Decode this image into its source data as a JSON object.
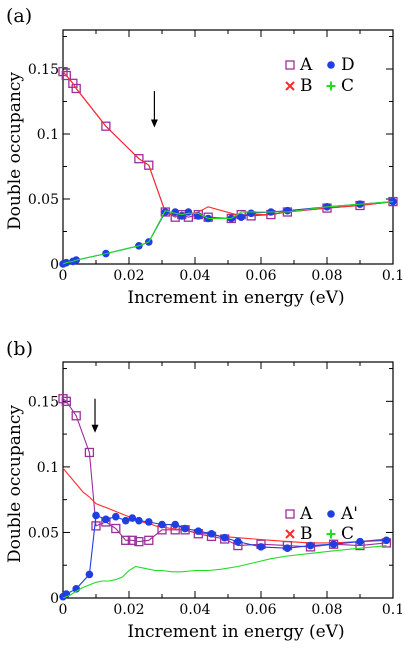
{
  "chart_data": [
    {
      "type": "line",
      "panel_label": "(a)",
      "xlabel": "Increment in energy (eV)",
      "ylabel": "Double occupancy",
      "xlim": [
        0,
        0.1
      ],
      "ylim": [
        0,
        0.18
      ],
      "xticks": [
        "0",
        "0.02",
        "0.04",
        "0.06",
        "0.08",
        "0.1"
      ],
      "yticks": [
        "0",
        "0.05",
        "0.1",
        "0.15"
      ],
      "arrow_at": {
        "x": 0.0277,
        "y_top": 0.133,
        "y_bottom": 0.105
      },
      "legend": {
        "placement": "top-right",
        "columns": 2
      },
      "series": [
        {
          "name": "A",
          "marker": "open-square",
          "color": "#9b2f9b",
          "x": [
            0,
            0.001,
            0.003,
            0.004,
            0.013,
            0.023,
            0.026,
            0.031,
            0.034,
            0.036,
            0.038,
            0.041,
            0.044,
            0.051,
            0.054,
            0.057,
            0.063,
            0.068,
            0.08,
            0.09,
            0.1
          ],
          "y": [
            0.148,
            0.145,
            0.139,
            0.135,
            0.106,
            0.081,
            0.076,
            0.04,
            0.036,
            0.038,
            0.036,
            0.038,
            0.036,
            0.035,
            0.038,
            0.037,
            0.038,
            0.04,
            0.043,
            0.045,
            0.048
          ]
        },
        {
          "name": "B",
          "marker": "x",
          "color": "#ff2a2a",
          "x": [
            0,
            0.001,
            0.003,
            0.004,
            0.013,
            0.023,
            0.026,
            0.031,
            0.034,
            0.036,
            0.038,
            0.041,
            0.044,
            0.051,
            0.054,
            0.057,
            0.063,
            0.068,
            0.08,
            0.09,
            0.1
          ],
          "y": [
            0.148,
            0.145,
            0.139,
            0.135,
            0.106,
            0.081,
            0.076,
            0.04,
            0.037,
            0.04,
            0.038,
            0.04,
            0.044,
            0.039,
            0.037,
            0.038,
            0.038,
            0.04,
            0.043,
            0.045,
            0.048
          ]
        },
        {
          "name": "D",
          "marker": "filled-circle",
          "color": "#1f3fe0",
          "x": [
            0,
            0.001,
            0.003,
            0.004,
            0.013,
            0.023,
            0.026,
            0.031,
            0.034,
            0.036,
            0.038,
            0.041,
            0.044,
            0.051,
            0.054,
            0.057,
            0.063,
            0.068,
            0.08,
            0.09,
            0.1
          ],
          "y": [
            0.0,
            0.001,
            0.002,
            0.003,
            0.008,
            0.014,
            0.017,
            0.04,
            0.04,
            0.037,
            0.04,
            0.037,
            0.035,
            0.035,
            0.036,
            0.039,
            0.04,
            0.041,
            0.044,
            0.046,
            0.048
          ]
        },
        {
          "name": "C",
          "marker": "plus",
          "color": "#22dd22",
          "x": [
            0,
            0.001,
            0.003,
            0.004,
            0.013,
            0.023,
            0.026,
            0.031,
            0.034,
            0.036,
            0.038,
            0.041,
            0.044,
            0.051,
            0.054,
            0.057,
            0.063,
            0.068,
            0.08,
            0.09,
            0.1
          ],
          "y": [
            0.0,
            0.001,
            0.002,
            0.003,
            0.008,
            0.014,
            0.017,
            0.041,
            0.039,
            0.038,
            0.039,
            0.039,
            0.035,
            0.035,
            0.04,
            0.04,
            0.04,
            0.04,
            0.044,
            0.046,
            0.048
          ]
        }
      ]
    },
    {
      "type": "line",
      "panel_label": "(b)",
      "xlabel": "Increment in energy (eV)",
      "ylabel": "Double occupancy",
      "xlim": [
        0,
        0.1
      ],
      "ylim": [
        0,
        0.18
      ],
      "xticks": [
        "0",
        "0.02",
        "0.04",
        "0.06",
        "0.08",
        "0.1"
      ],
      "yticks": [
        "0",
        "0.05",
        "0.1",
        "0.15"
      ],
      "arrow_at": {
        "x": 0.0097,
        "y_top": 0.152,
        "y_bottom": 0.126
      },
      "legend": {
        "placement": "top-right",
        "columns": 2
      },
      "series": [
        {
          "name": "A",
          "marker": "open-square",
          "color": "#9b2f9b",
          "x": [
            0,
            0.001,
            0.004,
            0.008,
            0.01,
            0.013,
            0.016,
            0.019,
            0.021,
            0.023,
            0.026,
            0.03,
            0.034,
            0.037,
            0.041,
            0.045,
            0.049,
            0.053,
            0.06,
            0.068,
            0.075,
            0.082,
            0.09,
            0.098
          ],
          "y": [
            0.152,
            0.15,
            0.139,
            0.111,
            0.055,
            0.058,
            0.053,
            0.044,
            0.044,
            0.043,
            0.044,
            0.052,
            0.052,
            0.052,
            0.049,
            0.047,
            0.045,
            0.04,
            0.041,
            0.04,
            0.039,
            0.041,
            0.04,
            0.042
          ]
        },
        {
          "name": "B",
          "marker": "x",
          "color": "#ff2a2a",
          "x": [
            0,
            0.002,
            0.004,
            0.006,
            0.008,
            0.01,
            0.012,
            0.014,
            0.016,
            0.018,
            0.02,
            0.022,
            0.024,
            0.026,
            0.028,
            0.03,
            0.033,
            0.036,
            0.04,
            0.044,
            0.048,
            0.053,
            0.058,
            0.063,
            0.068,
            0.075,
            0.082,
            0.09,
            0.098
          ],
          "y": [
            0.099,
            0.093,
            0.087,
            0.081,
            0.077,
            0.072,
            0.07,
            0.068,
            0.066,
            0.064,
            0.062,
            0.06,
            0.058,
            0.057,
            0.055,
            0.054,
            0.053,
            0.052,
            0.05,
            0.049,
            0.047,
            0.046,
            0.045,
            0.044,
            0.043,
            0.042,
            0.042,
            0.043,
            0.045
          ]
        },
        {
          "name": "A'",
          "marker": "filled-circle",
          "color": "#1f3fe0",
          "x": [
            0,
            0.001,
            0.004,
            0.008,
            0.01,
            0.013,
            0.016,
            0.019,
            0.021,
            0.023,
            0.026,
            0.03,
            0.034,
            0.037,
            0.041,
            0.045,
            0.049,
            0.053,
            0.06,
            0.068,
            0.075,
            0.082,
            0.09,
            0.098
          ],
          "y": [
            0.001,
            0.003,
            0.007,
            0.018,
            0.063,
            0.06,
            0.062,
            0.059,
            0.061,
            0.059,
            0.058,
            0.056,
            0.056,
            0.053,
            0.051,
            0.049,
            0.046,
            0.043,
            0.039,
            0.038,
            0.04,
            0.041,
            0.043,
            0.044
          ]
        },
        {
          "name": "C",
          "marker": "plus",
          "color": "#22dd22",
          "x": [
            0,
            0.002,
            0.004,
            0.006,
            0.008,
            0.01,
            0.012,
            0.014,
            0.016,
            0.018,
            0.02,
            0.022,
            0.024,
            0.026,
            0.028,
            0.03,
            0.033,
            0.036,
            0.04,
            0.044,
            0.048,
            0.053,
            0.058,
            0.063,
            0.068,
            0.075,
            0.082,
            0.09,
            0.098
          ],
          "y": [
            0.0,
            0.002,
            0.005,
            0.008,
            0.01,
            0.012,
            0.013,
            0.013,
            0.014,
            0.016,
            0.021,
            0.024,
            0.023,
            0.022,
            0.021,
            0.021,
            0.02,
            0.02,
            0.021,
            0.021,
            0.022,
            0.024,
            0.027,
            0.03,
            0.032,
            0.034,
            0.036,
            0.038,
            0.04
          ]
        }
      ]
    }
  ]
}
